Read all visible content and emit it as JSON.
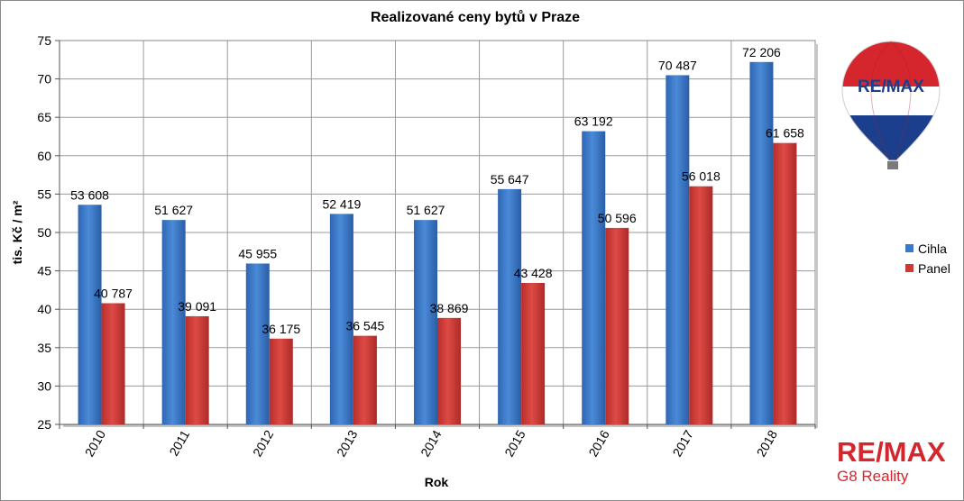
{
  "chart_data": {
    "type": "bar",
    "title": "Realizované ceny bytů v Praze",
    "xlabel": "Rok",
    "ylabel": "tis. Kč / m²",
    "ylim": [
      25,
      75
    ],
    "yticks": [
      25,
      30,
      35,
      40,
      45,
      50,
      55,
      60,
      65,
      70,
      75
    ],
    "categories": [
      "2010",
      "2011",
      "2012",
      "2013",
      "2014",
      "2015",
      "2016",
      "2017",
      "2018"
    ],
    "series": [
      {
        "name": "Cihla",
        "color": "#3a78c9",
        "values": [
          53.608,
          51.627,
          45.955,
          52.419,
          51.627,
          55.647,
          63.192,
          70.487,
          72.206
        ],
        "labels": [
          "53 608",
          "51 627",
          "45 955",
          "52 419",
          "51 627",
          "55 647",
          "63 192",
          "70 487",
          "72 206"
        ]
      },
      {
        "name": "Panel",
        "color": "#cc3a36",
        "values": [
          40.787,
          39.091,
          36.175,
          36.545,
          38.869,
          43.428,
          50.596,
          56.018,
          61.658
        ],
        "labels": [
          "40 787",
          "39 091",
          "36 175",
          "36 545",
          "38 869",
          "43 428",
          "50 596",
          "56 018",
          "61 658"
        ]
      }
    ],
    "grid": true,
    "legend_position": "right"
  },
  "branding": {
    "balloon_text": "RE/MAX",
    "logo_main": "RE/MAX",
    "logo_sub": "G8 Reality",
    "brand_red": "#d6262d",
    "brand_blue": "#1b3f8c"
  }
}
